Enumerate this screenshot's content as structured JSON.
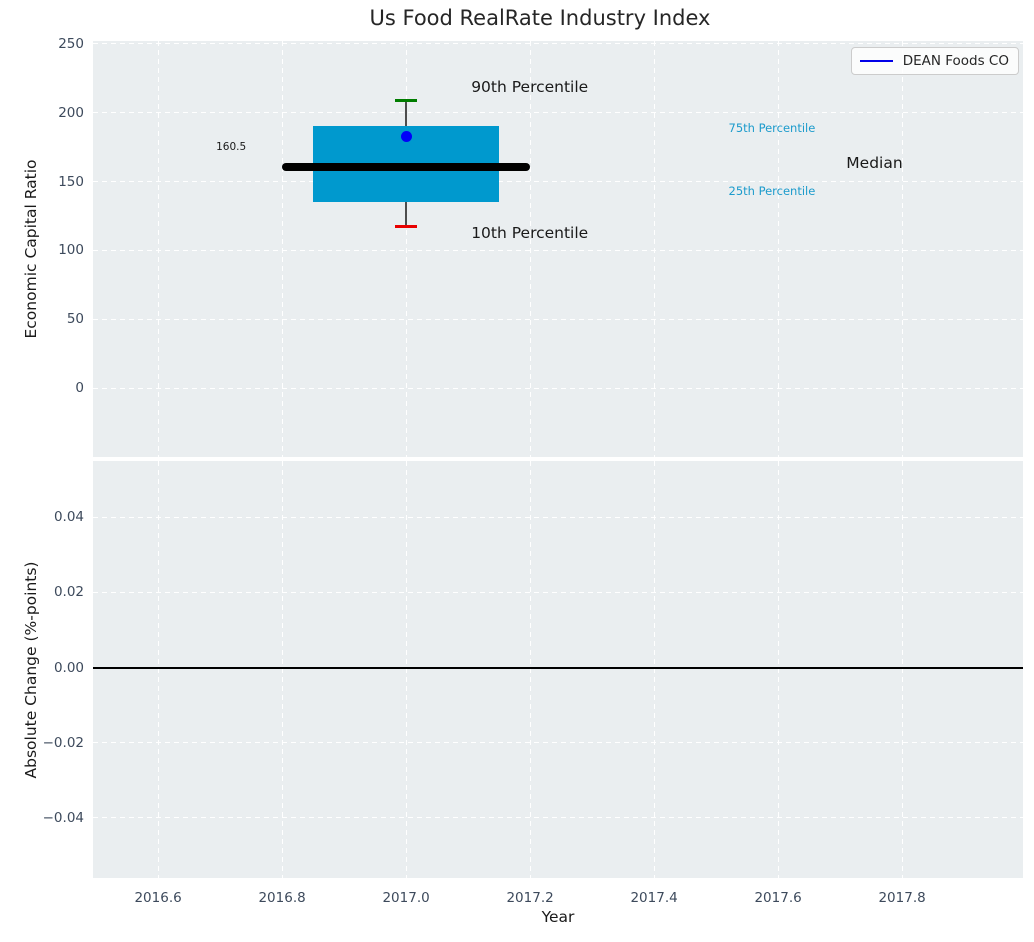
{
  "title": "Us Food RealRate Industry Index",
  "legend": {
    "label": "DEAN Foods CO"
  },
  "colors": {
    "axes_bg": "#EAEEF0",
    "grid": "#FFFFFF",
    "box_fill": "#0099CE",
    "median_line": "#000000",
    "whisker": "#4D4D4D",
    "p90_cap": "#007D00",
    "p10_cap": "#E80000",
    "company_dot": "#0000FA",
    "legend_line": "#0000E8",
    "tick_label": "#3D4A5C",
    "percentile_label": "#1C9BCC",
    "text": "#1A1A1A",
    "title_color": "#262626",
    "zero_line": "#000000"
  },
  "chart_data": [
    {
      "type": "box",
      "title": "Us Food RealRate Industry Index",
      "ylabel": "Economic Capital Ratio",
      "xlim": [
        2016.495,
        2017.995
      ],
      "ylim": [
        -50,
        252
      ],
      "xticks": [
        2016.6,
        2016.8,
        2017.0,
        2017.2,
        2017.4,
        2017.6,
        2017.8
      ],
      "yticks": [
        0,
        50,
        100,
        150,
        200,
        250
      ],
      "ytick_labels": [
        "0",
        "50",
        "100",
        "150",
        "200",
        "250"
      ],
      "grid": "white-dashed",
      "legend_position": "upper right",
      "series": {
        "name": "Industry percentile box at year 2017",
        "x": 2017.0,
        "p10": 117,
        "p25": 135,
        "median": 160.5,
        "p75": 190,
        "p90": 209,
        "box_x0": 2016.85,
        "box_x1": 2017.15,
        "median_x0": 2016.8,
        "median_x1": 2017.2,
        "company_name": "DEAN Foods CO",
        "company_value": 183
      },
      "median_value_label": "160.5",
      "annotations": [
        {
          "name": "label-90th-percentile",
          "text": "90th Percentile",
          "x": 2017.105,
          "y": 218,
          "size": 15.5,
          "color": "#1A1A1A",
          "align": "left"
        },
        {
          "name": "label-10th-percentile",
          "text": "10th Percentile",
          "x": 2017.105,
          "y": 112,
          "size": 15.5,
          "color": "#1A1A1A",
          "align": "left"
        },
        {
          "name": "label-75th-percentile",
          "text": "75th Percentile",
          "x": 2017.52,
          "y": 188,
          "size": 11.5,
          "color": "#1C9BCC",
          "align": "left"
        },
        {
          "name": "label-25th-percentile",
          "text": "25th Percentile",
          "x": 2017.52,
          "y": 142,
          "size": 11.5,
          "color": "#1C9BCC",
          "align": "left"
        },
        {
          "name": "label-median",
          "text": "Median",
          "x": 2017.71,
          "y": 163,
          "size": 15.5,
          "color": "#1A1A1A",
          "align": "left"
        },
        {
          "name": "label-median-value",
          "text": "160.5",
          "x": 2016.742,
          "y": 175,
          "size": 10.5,
          "color": "#1A1A1A",
          "align": "right"
        }
      ]
    },
    {
      "type": "line",
      "ylabel": "Absolute Change (%-points)",
      "xlabel": "Year",
      "xlim": [
        2016.495,
        2017.995
      ],
      "ylim": [
        -0.056,
        0.055
      ],
      "xticks": [
        2016.6,
        2016.8,
        2017.0,
        2017.2,
        2017.4,
        2017.6,
        2017.8
      ],
      "xtick_labels": [
        "2016.6",
        "2016.8",
        "2017.0",
        "2017.2",
        "2017.4",
        "2017.6",
        "2017.8"
      ],
      "yticks": [
        0.04,
        0.02,
        0,
        -0.02,
        -0.04
      ],
      "ytick_labels": [
        "0.04",
        "0.02",
        "0.00",
        "−0.02",
        "−0.04"
      ],
      "grid": "white-dashed",
      "zero_line": 0,
      "series": []
    }
  ]
}
